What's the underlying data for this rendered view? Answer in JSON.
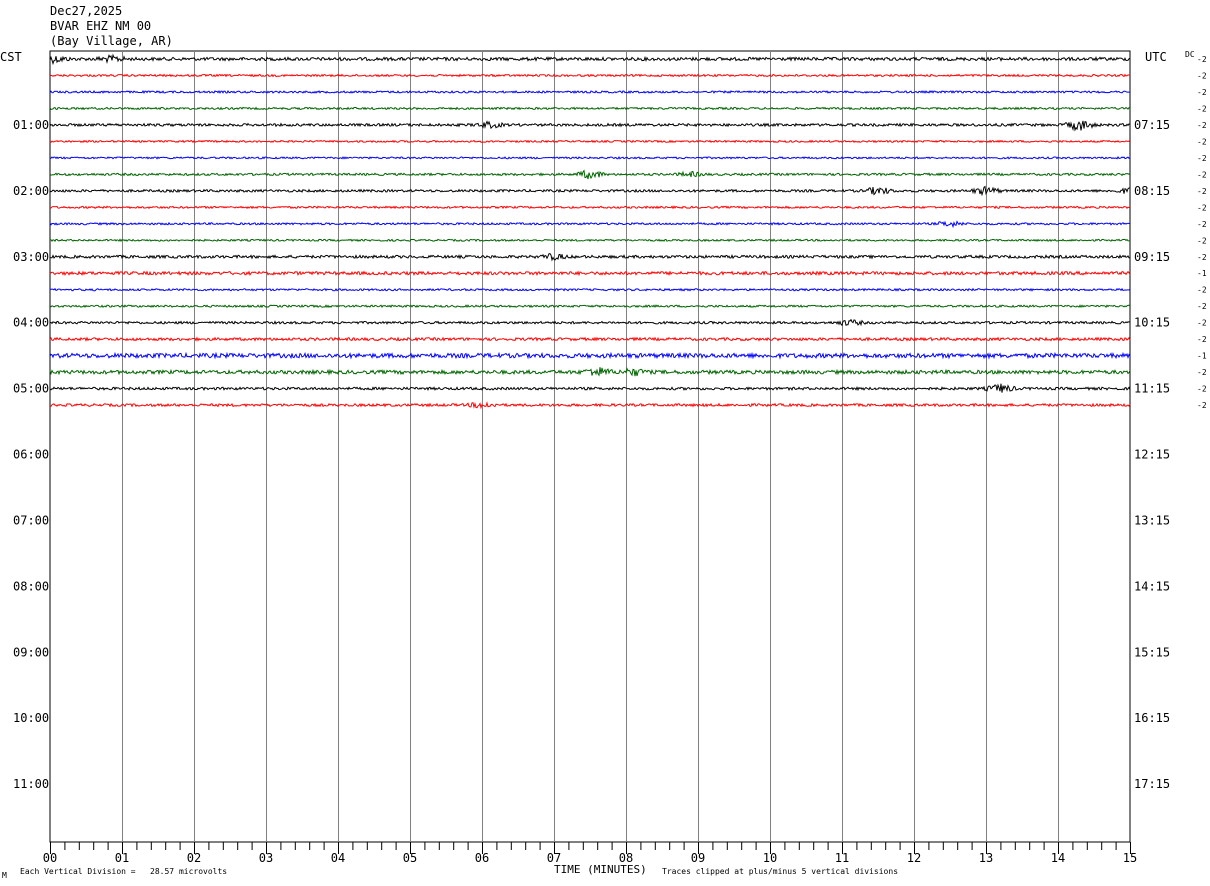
{
  "header": {
    "date": "Dec27,2025",
    "station": "BVAR EHZ NM 00",
    "location": "(Bay Village, AR)"
  },
  "footer": {
    "scale_note": "Each Vertical Division =   28.57 microvolts",
    "clip_note": "Traces clipped at plus/minus 5 vertical divisions",
    "corner_mark": "M"
  },
  "chart_data": {
    "type": "line",
    "title": "",
    "xlabel": "TIME (MINUTES)",
    "ylabel": "",
    "xlim": [
      0,
      15
    ],
    "x_ticks": [
      "00",
      "01",
      "02",
      "03",
      "04",
      "05",
      "06",
      "07",
      "08",
      "09",
      "10",
      "11",
      "12",
      "13",
      "14",
      "15"
    ],
    "left_axis_label": "CST",
    "right_axis_label": "UTC",
    "dc_label": "DC",
    "left_hour_labels": [
      "01:00",
      "02:00",
      "03:00",
      "04:00",
      "05:00",
      "06:00",
      "07:00",
      "08:00",
      "09:00",
      "10:00",
      "11:00"
    ],
    "right_hour_labels": [
      "07:15",
      "08:15",
      "09:15",
      "10:15",
      "11:15",
      "12:15",
      "13:15",
      "14:15",
      "15:15",
      "16:15",
      "17:15"
    ],
    "trace_colors": [
      "#000000",
      "#ff0000",
      "#0000ff",
      "#006400"
    ],
    "rows_per_hour": 4,
    "total_rows": 48,
    "traces": [
      {
        "index": 0,
        "dc": "-2",
        "amp": 1.6,
        "events": [
          [
            0.05,
            3
          ],
          [
            0.85,
            2.5
          ]
        ]
      },
      {
        "index": 1,
        "dc": "-2",
        "amp": 1.0,
        "events": []
      },
      {
        "index": 2,
        "dc": "-2",
        "amp": 1.0,
        "events": []
      },
      {
        "index": 3,
        "dc": "-2",
        "amp": 1.0,
        "events": []
      },
      {
        "index": 4,
        "dc": "-2",
        "amp": 1.3,
        "events": [
          [
            6.1,
            2.5
          ],
          [
            14.3,
            5
          ]
        ]
      },
      {
        "index": 5,
        "dc": "-2",
        "amp": 0.9,
        "events": []
      },
      {
        "index": 6,
        "dc": "-2",
        "amp": 0.9,
        "events": []
      },
      {
        "index": 7,
        "dc": "-2",
        "amp": 1.1,
        "events": [
          [
            7.5,
            4
          ],
          [
            8.9,
            2
          ]
        ]
      },
      {
        "index": 8,
        "dc": "-2",
        "amp": 1.2,
        "events": [
          [
            11.5,
            3.5
          ],
          [
            13.0,
            3.5
          ],
          [
            15.0,
            2.5
          ]
        ]
      },
      {
        "index": 9,
        "dc": "-2",
        "amp": 1.0,
        "events": []
      },
      {
        "index": 10,
        "dc": "-2",
        "amp": 1.0,
        "events": [
          [
            12.5,
            2.5
          ]
        ]
      },
      {
        "index": 11,
        "dc": "-2",
        "amp": 0.9,
        "events": []
      },
      {
        "index": 12,
        "dc": "-2",
        "amp": 1.4,
        "events": [
          [
            7.0,
            2.5
          ]
        ]
      },
      {
        "index": 13,
        "dc": "-1",
        "amp": 1.6,
        "events": []
      },
      {
        "index": 14,
        "dc": "-2",
        "amp": 1.0,
        "events": []
      },
      {
        "index": 15,
        "dc": "-2",
        "amp": 1.0,
        "events": []
      },
      {
        "index": 16,
        "dc": "-2",
        "amp": 1.2,
        "events": [
          [
            11.1,
            2.5
          ]
        ]
      },
      {
        "index": 17,
        "dc": "-2",
        "amp": 1.4,
        "events": []
      },
      {
        "index": 18,
        "dc": "-1",
        "amp": 2.2,
        "events": []
      },
      {
        "index": 19,
        "dc": "-2",
        "amp": 1.8,
        "events": [
          [
            7.6,
            4
          ],
          [
            8.1,
            3
          ]
        ]
      },
      {
        "index": 20,
        "dc": "-2",
        "amp": 1.3,
        "events": [
          [
            13.2,
            4
          ]
        ]
      },
      {
        "index": 21,
        "dc": "-2",
        "amp": 1.3,
        "events": [
          [
            6.0,
            2.5
          ]
        ]
      }
    ]
  }
}
